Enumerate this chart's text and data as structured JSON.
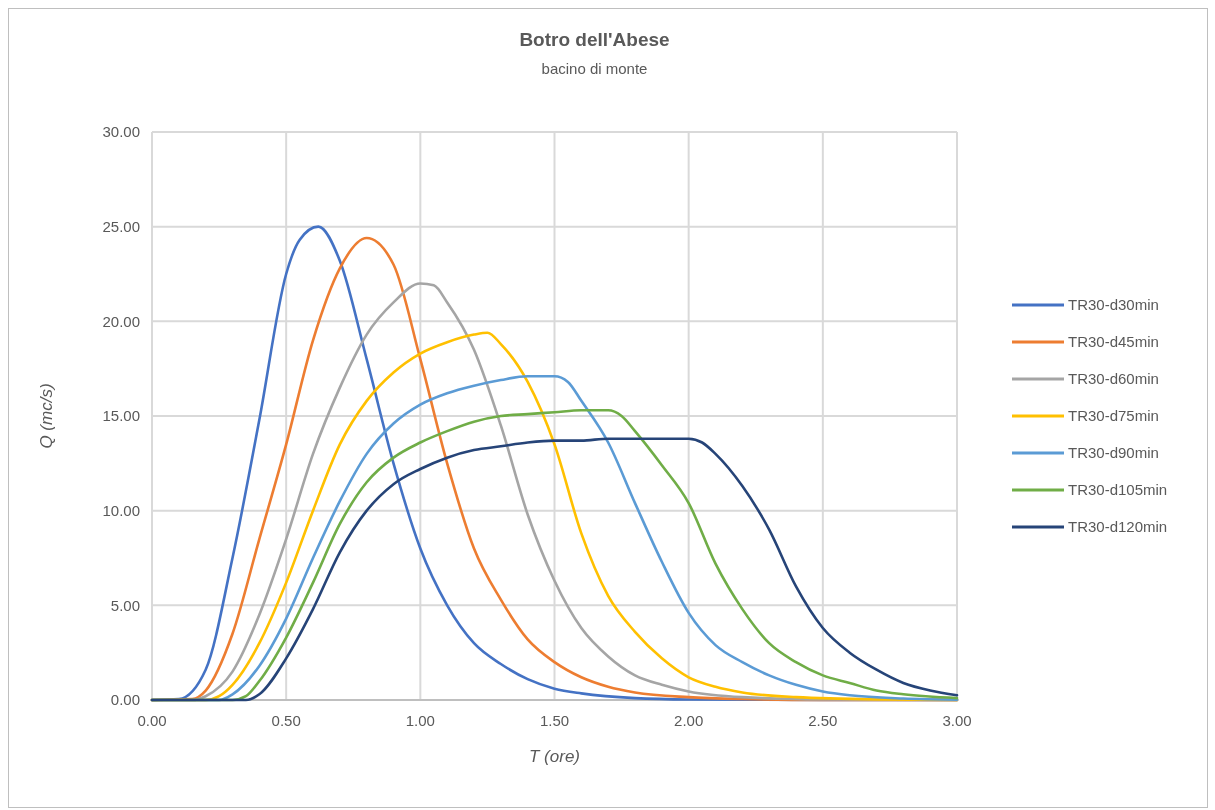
{
  "chart_data": {
    "type": "line",
    "title": "Botro dell'Abese",
    "subtitle": "bacino di monte",
    "xlabel": "T (ore)",
    "ylabel": "Q (mc/s)",
    "xlim": [
      0,
      3
    ],
    "ylim": [
      0,
      30
    ],
    "xticks": [
      {
        "value": 0,
        "label": "0.00"
      },
      {
        "value": 0.5,
        "label": "0.50"
      },
      {
        "value": 1,
        "label": "1.00"
      },
      {
        "value": 1.5,
        "label": "1.50"
      },
      {
        "value": 2,
        "label": "2.00"
      },
      {
        "value": 2.5,
        "label": "2.50"
      },
      {
        "value": 3,
        "label": "3.00"
      }
    ],
    "yticks": [
      {
        "value": 0,
        "label": "0.00"
      },
      {
        "value": 5,
        "label": "5.00"
      },
      {
        "value": 10,
        "label": "10.00"
      },
      {
        "value": 15,
        "label": "15.00"
      },
      {
        "value": 20,
        "label": "20.00"
      },
      {
        "value": 25,
        "label": "25.00"
      },
      {
        "value": 30,
        "label": "30.00"
      }
    ],
    "grid": true,
    "legend": "right",
    "marker": "none",
    "line_style": "solid",
    "series": [
      {
        "name": "TR30-d30min",
        "color": "#4472c4",
        "x": [
          0,
          0.1,
          0.2,
          0.3,
          0.4,
          0.5,
          0.55,
          0.62,
          0.7,
          0.8,
          0.9,
          1.0,
          1.1,
          1.2,
          1.3,
          1.4,
          1.5,
          1.6,
          1.8,
          2.0,
          2.5,
          3.0
        ],
        "values": [
          0,
          0.05,
          1.6,
          7.5,
          14.8,
          22.5,
          24.3,
          25.0,
          23.2,
          18,
          12.5,
          8,
          5,
          3,
          1.9,
          1.1,
          0.6,
          0.35,
          0.1,
          0.03,
          0,
          0
        ]
      },
      {
        "name": "TR30-d45min",
        "color": "#ed7d31",
        "x": [
          0,
          0.15,
          0.2,
          0.3,
          0.4,
          0.5,
          0.6,
          0.7,
          0.8,
          0.9,
          1.0,
          1.1,
          1.2,
          1.3,
          1.4,
          1.5,
          1.6,
          1.7,
          1.8,
          2.0,
          2.2,
          2.5,
          3.0
        ],
        "values": [
          0,
          0.05,
          0.5,
          3.5,
          8.5,
          13.5,
          19,
          22.8,
          24.4,
          23,
          18,
          12.5,
          8,
          5.3,
          3.2,
          2,
          1.2,
          0.7,
          0.4,
          0.15,
          0.05,
          0,
          0
        ]
      },
      {
        "name": "TR30-d60min",
        "color": "#a5a5a5",
        "x": [
          0,
          0.15,
          0.2,
          0.3,
          0.4,
          0.5,
          0.6,
          0.7,
          0.8,
          0.9,
          1.0,
          1.05,
          1.1,
          1.2,
          1.3,
          1.4,
          1.5,
          1.6,
          1.7,
          1.8,
          1.9,
          2.0,
          2.2,
          2.5,
          3.0
        ],
        "values": [
          0,
          0,
          0.2,
          1.5,
          4.5,
          8.5,
          13,
          16.5,
          19.3,
          21,
          22,
          21.9,
          21,
          18.5,
          14.5,
          9.8,
          6.3,
          3.8,
          2.3,
          1.3,
          0.8,
          0.45,
          0.15,
          0.03,
          0
        ]
      },
      {
        "name": "TR30-d75min",
        "color": "#ffc000",
        "x": [
          0,
          0.2,
          0.25,
          0.3,
          0.4,
          0.5,
          0.6,
          0.7,
          0.8,
          0.9,
          1.0,
          1.1,
          1.2,
          1.25,
          1.3,
          1.4,
          1.5,
          1.6,
          1.7,
          1.8,
          1.9,
          2.0,
          2.1,
          2.2,
          2.4,
          2.7,
          3.0
        ],
        "values": [
          0,
          0,
          0.2,
          0.8,
          3,
          6.2,
          10,
          13.5,
          15.8,
          17.3,
          18.3,
          18.9,
          19.3,
          19.4,
          18.8,
          16.8,
          13.5,
          8.8,
          5.5,
          3.6,
          2.2,
          1.2,
          0.7,
          0.4,
          0.15,
          0.03,
          0
        ]
      },
      {
        "name": "TR30-d90min",
        "color": "#5b9bd5",
        "x": [
          0,
          0.25,
          0.3,
          0.4,
          0.5,
          0.6,
          0.7,
          0.8,
          0.9,
          1.0,
          1.1,
          1.2,
          1.3,
          1.4,
          1.5,
          1.55,
          1.6,
          1.7,
          1.8,
          1.9,
          2.0,
          2.1,
          2.2,
          2.3,
          2.4,
          2.5,
          2.6,
          2.8,
          3.0
        ],
        "values": [
          0,
          0,
          0.3,
          1.8,
          4.3,
          7.5,
          10.5,
          13,
          14.6,
          15.6,
          16.2,
          16.6,
          16.9,
          17.1,
          17.1,
          16.8,
          15.8,
          13.6,
          10.4,
          7.3,
          4.6,
          2.9,
          2,
          1.3,
          0.8,
          0.45,
          0.25,
          0.08,
          0.02
        ]
      },
      {
        "name": "TR30-d105min",
        "color": "#70ad47",
        "x": [
          0,
          0.3,
          0.35,
          0.4,
          0.5,
          0.6,
          0.7,
          0.8,
          0.9,
          1.0,
          1.1,
          1.2,
          1.3,
          1.4,
          1.5,
          1.6,
          1.7,
          1.75,
          1.8,
          1.9,
          2.0,
          2.1,
          2.2,
          2.3,
          2.4,
          2.5,
          2.6,
          2.7,
          2.8,
          3.0
        ],
        "values": [
          0,
          0,
          0.2,
          1,
          3.3,
          6.2,
          9.3,
          11.5,
          12.8,
          13.6,
          14.2,
          14.7,
          15,
          15.1,
          15.2,
          15.3,
          15.3,
          15,
          14.2,
          12.4,
          10.4,
          7.2,
          4.8,
          3,
          2,
          1.3,
          0.9,
          0.5,
          0.3,
          0.1
        ]
      },
      {
        "name": "TR30-d120min",
        "color": "#264478",
        "x": [
          0,
          0.35,
          0.4,
          0.5,
          0.6,
          0.7,
          0.8,
          0.9,
          1.0,
          1.1,
          1.2,
          1.3,
          1.4,
          1.5,
          1.6,
          1.7,
          1.8,
          1.9,
          2.0,
          2.05,
          2.1,
          2.2,
          2.3,
          2.4,
          2.5,
          2.6,
          2.7,
          2.8,
          2.9,
          3.0
        ],
        "values": [
          0,
          0,
          0.3,
          2.2,
          4.8,
          7.8,
          10,
          11.4,
          12.2,
          12.8,
          13.2,
          13.4,
          13.6,
          13.7,
          13.7,
          13.8,
          13.8,
          13.8,
          13.8,
          13.6,
          13,
          11.3,
          9,
          6,
          3.8,
          2.5,
          1.6,
          0.9,
          0.5,
          0.25
        ]
      }
    ]
  }
}
